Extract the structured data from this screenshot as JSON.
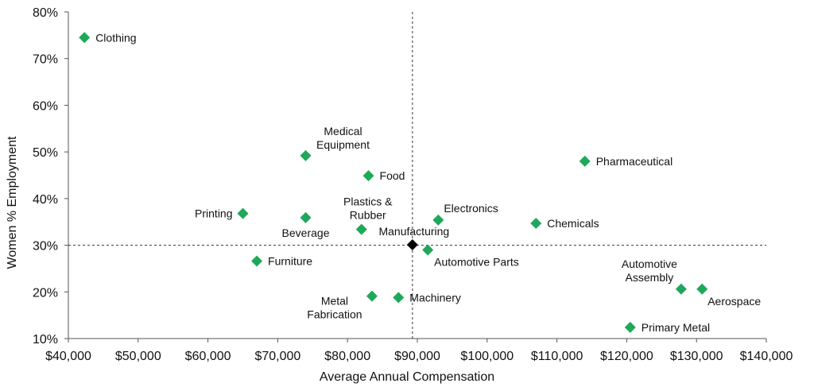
{
  "chart_data": {
    "type": "scatter",
    "xlabel": "Average Annual Compensation",
    "ylabel": "Women % Employment",
    "xlim": [
      40000,
      140000
    ],
    "ylim": [
      10,
      80
    ],
    "x_ticks": [
      40000,
      50000,
      60000,
      70000,
      80000,
      90000,
      100000,
      110000,
      120000,
      130000,
      140000
    ],
    "x_tick_labels": [
      "$40,000",
      "$50,000",
      "$60,000",
      "$70,000",
      "$80,000",
      "$90,000",
      "$100,000",
      "$110,000",
      "$120,000",
      "$130,000",
      "$140,000"
    ],
    "y_ticks": [
      10,
      20,
      30,
      40,
      50,
      60,
      70,
      80
    ],
    "y_tick_labels": [
      "10%",
      "20%",
      "30%",
      "40%",
      "50%",
      "60%",
      "70%",
      "80%"
    ],
    "grid": false,
    "reference_lines": {
      "x": 89300,
      "y": 30
    },
    "colors": {
      "points": "#1ea85a",
      "highlight": "#000000",
      "reference": "#333333",
      "axis": "#555555"
    },
    "points": [
      {
        "label": "Clothing",
        "x": 42300,
        "y": 74.5,
        "color": "#1ea85a",
        "label_pos": "right"
      },
      {
        "label": "Medical Equipment",
        "lines": [
          "Medical",
          "Equipment"
        ],
        "x": 74000,
        "y": 49.2,
        "color": "#1ea85a",
        "label_pos": "above-right"
      },
      {
        "label": "Food",
        "x": 83000,
        "y": 44.9,
        "color": "#1ea85a",
        "label_pos": "right"
      },
      {
        "label": "Pharmaceutical",
        "x": 114000,
        "y": 48,
        "color": "#1ea85a",
        "label_pos": "right"
      },
      {
        "label": "Printing",
        "x": 65000,
        "y": 36.8,
        "color": "#1ea85a",
        "label_pos": "left"
      },
      {
        "label": "Beverage",
        "x": 74000,
        "y": 35.9,
        "color": "#1ea85a",
        "label_pos": "below"
      },
      {
        "label": "Plastics & Rubber",
        "lines": [
          "Plastics &",
          "Rubber"
        ],
        "x": 82000,
        "y": 33.4,
        "color": "#1ea85a",
        "label_pos": "above"
      },
      {
        "label": "Electronics",
        "x": 93000,
        "y": 35.4,
        "color": "#1ea85a",
        "label_pos": "above-right"
      },
      {
        "label": "Chemicals",
        "x": 107000,
        "y": 34.7,
        "color": "#1ea85a",
        "label_pos": "right"
      },
      {
        "label": "Manufacturing",
        "x": 89300,
        "y": 30.1,
        "color": "#000000",
        "label_pos": "above-right"
      },
      {
        "label": "Automotive Parts",
        "x": 91500,
        "y": 29,
        "color": "#1ea85a",
        "label_pos": "below-right"
      },
      {
        "label": "Furniture",
        "x": 67000,
        "y": 26.6,
        "color": "#1ea85a",
        "label_pos": "right"
      },
      {
        "label": "Metal Fabrication",
        "lines": [
          "Metal",
          "Fabrication"
        ],
        "x": 83500,
        "y": 19.1,
        "color": "#1ea85a",
        "label_pos": "below-left"
      },
      {
        "label": "Machinery",
        "x": 87300,
        "y": 18.8,
        "color": "#1ea85a",
        "label_pos": "right"
      },
      {
        "label": "Automotive Assembly",
        "lines": [
          "Automotive",
          "Assembly"
        ],
        "x": 127800,
        "y": 20.6,
        "color": "#1ea85a",
        "label_pos": "above-left"
      },
      {
        "label": "Aerospace",
        "x": 130800,
        "y": 20.6,
        "color": "#1ea85a",
        "label_pos": "below-right"
      },
      {
        "label": "Primary Metal",
        "x": 120500,
        "y": 12.4,
        "color": "#1ea85a",
        "label_pos": "right"
      }
    ]
  }
}
